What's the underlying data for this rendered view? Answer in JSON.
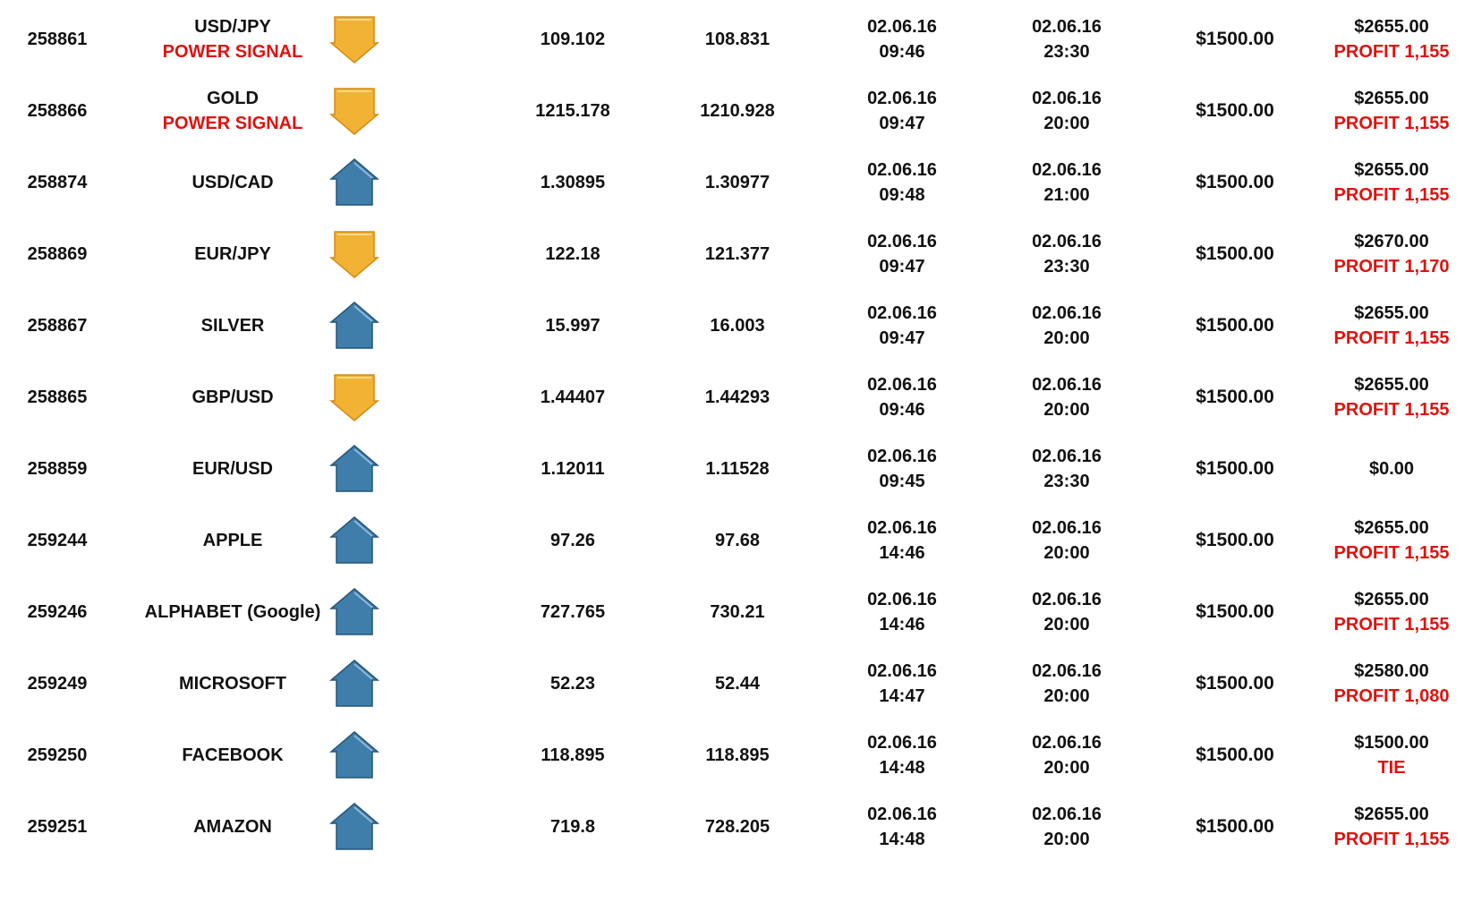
{
  "trades": [
    {
      "id": "258861",
      "asset": "USD/JPY",
      "signal": "POWER SIGNAL",
      "direction": "down",
      "direction_icon": "down-arrow-icon",
      "open_rate": "109.102",
      "close_rate": "108.831",
      "open_date": "02.06.16",
      "open_time": "09:46",
      "close_date": "02.06.16",
      "close_time": "23:30",
      "investment": "$1500.00",
      "payout": "$2655.00",
      "result": "PROFIT 1,155"
    },
    {
      "id": "258866",
      "asset": "GOLD",
      "signal": "POWER SIGNAL",
      "direction": "down",
      "direction_icon": "down-arrow-icon",
      "open_rate": "1215.178",
      "close_rate": "1210.928",
      "open_date": "02.06.16",
      "open_time": "09:47",
      "close_date": "02.06.16",
      "close_time": "20:00",
      "investment": "$1500.00",
      "payout": "$2655.00",
      "result": "PROFIT 1,155"
    },
    {
      "id": "258874",
      "asset": "USD/CAD",
      "signal": "",
      "direction": "up",
      "direction_icon": "up-arrow-icon",
      "open_rate": "1.30895",
      "close_rate": "1.30977",
      "open_date": "02.06.16",
      "open_time": "09:48",
      "close_date": "02.06.16",
      "close_time": "21:00",
      "investment": "$1500.00",
      "payout": "$2655.00",
      "result": "PROFIT 1,155"
    },
    {
      "id": "258869",
      "asset": "EUR/JPY",
      "signal": "",
      "direction": "down",
      "direction_icon": "down-arrow-icon",
      "open_rate": "122.18",
      "close_rate": "121.377",
      "open_date": "02.06.16",
      "open_time": "09:47",
      "close_date": "02.06.16",
      "close_time": "23:30",
      "investment": "$1500.00",
      "payout": "$2670.00",
      "result": "PROFIT 1,170"
    },
    {
      "id": "258867",
      "asset": "SILVER",
      "signal": "",
      "direction": "up",
      "direction_icon": "up-arrow-icon",
      "open_rate": "15.997",
      "close_rate": "16.003",
      "open_date": "02.06.16",
      "open_time": "09:47",
      "close_date": "02.06.16",
      "close_time": "20:00",
      "investment": "$1500.00",
      "payout": "$2655.00",
      "result": "PROFIT 1,155"
    },
    {
      "id": "258865",
      "asset": "GBP/USD",
      "signal": "",
      "direction": "down",
      "direction_icon": "down-arrow-icon",
      "open_rate": "1.44407",
      "close_rate": "1.44293",
      "open_date": "02.06.16",
      "open_time": "09:46",
      "close_date": "02.06.16",
      "close_time": "20:00",
      "investment": "$1500.00",
      "payout": "$2655.00",
      "result": "PROFIT 1,155"
    },
    {
      "id": "258859",
      "asset": "EUR/USD",
      "signal": "",
      "direction": "up",
      "direction_icon": "up-arrow-icon",
      "open_rate": "1.12011",
      "close_rate": "1.11528",
      "open_date": "02.06.16",
      "open_time": "09:45",
      "close_date": "02.06.16",
      "close_time": "23:30",
      "investment": "$1500.00",
      "payout": "$0.00",
      "result": ""
    },
    {
      "id": "259244",
      "asset": "APPLE",
      "signal": "",
      "direction": "up",
      "direction_icon": "up-arrow-icon",
      "open_rate": "97.26",
      "close_rate": "97.68",
      "open_date": "02.06.16",
      "open_time": "14:46",
      "close_date": "02.06.16",
      "close_time": "20:00",
      "investment": "$1500.00",
      "payout": "$2655.00",
      "result": "PROFIT 1,155"
    },
    {
      "id": "259246",
      "asset": "ALPHABET (Google)",
      "signal": "",
      "direction": "up",
      "direction_icon": "up-arrow-icon",
      "open_rate": "727.765",
      "close_rate": "730.21",
      "open_date": "02.06.16",
      "open_time": "14:46",
      "close_date": "02.06.16",
      "close_time": "20:00",
      "investment": "$1500.00",
      "payout": "$2655.00",
      "result": "PROFIT 1,155"
    },
    {
      "id": "259249",
      "asset": "MICROSOFT",
      "signal": "",
      "direction": "up",
      "direction_icon": "up-arrow-icon",
      "open_rate": "52.23",
      "close_rate": "52.44",
      "open_date": "02.06.16",
      "open_time": "14:47",
      "close_date": "02.06.16",
      "close_time": "20:00",
      "investment": "$1500.00",
      "payout": "$2580.00",
      "result": "PROFIT 1,080"
    },
    {
      "id": "259250",
      "asset": "FACEBOOK",
      "signal": "",
      "direction": "up",
      "direction_icon": "up-arrow-icon",
      "open_rate": "118.895",
      "close_rate": "118.895",
      "open_date": "02.06.16",
      "open_time": "14:48",
      "close_date": "02.06.16",
      "close_time": "20:00",
      "investment": "$1500.00",
      "payout": "$1500.00",
      "result": "TIE"
    },
    {
      "id": "259251",
      "asset": "AMAZON",
      "signal": "",
      "direction": "up",
      "direction_icon": "up-arrow-icon",
      "open_rate": "719.8",
      "close_rate": "728.205",
      "open_date": "02.06.16",
      "open_time": "14:48",
      "close_date": "02.06.16",
      "close_time": "20:00",
      "investment": "$1500.00",
      "payout": "$2655.00",
      "result": "PROFIT 1,155"
    }
  ],
  "colors": {
    "text": "#111111",
    "result_red": "#e0120d",
    "up_arrow_fill": "#3f7eaa",
    "up_arrow_dark": "#24557a",
    "down_arrow_fill": "#f2b233",
    "down_arrow_dark": "#d48a14"
  }
}
